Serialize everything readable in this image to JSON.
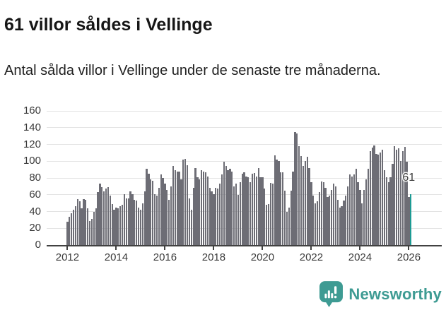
{
  "header": {
    "title": "61 villor såldes i Vellinge",
    "subtitle": "Antal sålda villor i Vellinge under de senaste tre månaderna."
  },
  "footer": {
    "brand": "Newsworthy",
    "brand_icon": "speech-bubble-bar-chart-icon"
  },
  "colors": {
    "bar": "#6d6d75",
    "highlight": "#1d9b94",
    "brand_teal": "#3e9b93",
    "grid": "#e3e3e3",
    "axis": "#414141",
    "tick_text": "#3a3a3a"
  },
  "chart_data": {
    "type": "bar",
    "title": "61 villor såldes i Vellinge",
    "subtitle": "Antal sålda villor i Vellinge under de senaste tre månaderna.",
    "xlabel": "",
    "ylabel": "",
    "ylim": [
      0,
      160
    ],
    "yticks": [
      0,
      20,
      40,
      60,
      80,
      100,
      120,
      140,
      160
    ],
    "xtick_years": [
      2012,
      2014,
      2016,
      2018,
      2020,
      2022,
      2024,
      2026
    ],
    "grid": true,
    "legend": false,
    "x_start_year": 2012,
    "months_per_bar": 1,
    "highlight_last": true,
    "annotation": {
      "text": "61",
      "value": 61,
      "target": "last-bar"
    },
    "values": [
      28,
      34,
      38,
      42,
      46,
      55,
      52,
      44,
      55,
      54,
      44,
      29,
      31,
      40,
      44,
      63,
      73,
      69,
      64,
      67,
      69,
      59,
      49,
      42,
      45,
      44,
      46,
      48,
      61,
      56,
      56,
      64,
      61,
      54,
      53,
      45,
      42,
      50,
      64,
      91,
      85,
      78,
      77,
      61,
      59,
      68,
      84,
      80,
      73,
      66,
      54,
      70,
      94,
      89,
      88,
      88,
      78,
      102,
      103,
      95,
      56,
      42,
      68,
      92,
      81,
      78,
      89,
      88,
      87,
      82,
      68,
      64,
      61,
      68,
      67,
      73,
      84,
      99,
      94,
      89,
      91,
      88,
      70,
      73,
      60,
      75,
      85,
      87,
      82,
      81,
      75,
      85,
      86,
      82,
      92,
      81,
      81,
      67,
      48,
      49,
      74,
      73,
      107,
      102,
      100,
      87,
      87,
      65,
      40,
      45,
      65,
      88,
      135,
      133,
      118,
      106,
      94,
      100,
      105,
      92,
      75,
      59,
      50,
      52,
      63,
      76,
      75,
      68,
      57,
      59,
      66,
      73,
      70,
      54,
      45,
      46,
      53,
      59,
      70,
      84,
      82,
      84,
      91,
      75,
      66,
      50,
      66,
      78,
      91,
      112,
      116,
      119,
      109,
      108,
      110,
      114,
      89,
      81,
      75,
      81,
      97,
      118,
      114,
      115,
      100,
      112,
      117,
      99,
      57,
      61
    ]
  }
}
